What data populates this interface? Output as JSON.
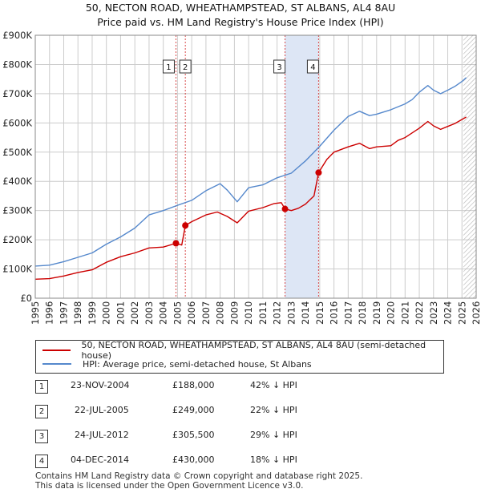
{
  "title_line1": "50, NECTON ROAD, WHEATHAMPSTEAD, ST ALBANS, AL4 8AU",
  "title_line2": "Price paid vs. HM Land Registry's House Price Index (HPI)",
  "colors": {
    "price": "#cc0000",
    "hpi": "#5588cc",
    "band": "#dde6f5",
    "grid": "#cccccc",
    "forecast_hatch": "#aaaaaa"
  },
  "chart_data": {
    "type": "line",
    "title": "Price paid vs. HM Land Registry's House Price Index (HPI)",
    "xlabel": "",
    "ylabel": "",
    "xlim": [
      1995,
      2026
    ],
    "ylim": [
      0,
      900000
    ],
    "x_ticks": [
      1995,
      1996,
      1997,
      1998,
      1999,
      2000,
      2001,
      2002,
      2003,
      2004,
      2005,
      2006,
      2007,
      2008,
      2009,
      2010,
      2011,
      2012,
      2013,
      2014,
      2015,
      2016,
      2017,
      2018,
      2019,
      2020,
      2021,
      2022,
      2023,
      2024,
      2025,
      2026
    ],
    "y_ticks": [
      0,
      100000,
      200000,
      300000,
      400000,
      500000,
      600000,
      700000,
      800000,
      900000
    ],
    "y_tick_labels": [
      "£0",
      "£100K",
      "£200K",
      "£300K",
      "£400K",
      "£500K",
      "£600K",
      "£700K",
      "£800K",
      "£900K"
    ],
    "shaded_range": [
      2012.56,
      2014.92
    ],
    "forecast_start": 2025.1,
    "series": [
      {
        "name": "50, NECTON ROAD, WHEATHAMPSTEAD, ST ALBANS, AL4 8AU (semi-detached house)",
        "color": "#cc0000",
        "x": [
          1995,
          1996,
          1997,
          1998,
          1999,
          2000,
          2001,
          2002,
          2003,
          2004,
          2004.89,
          2005.3,
          2005.55,
          2006,
          2007,
          2007.8,
          2008.5,
          2009.2,
          2010,
          2011,
          2011.8,
          2012.3,
          2012.56,
          2013,
          2013.5,
          2014,
          2014.6,
          2014.92,
          2015.5,
          2016,
          2017,
          2017.8,
          2018.5,
          2019,
          2020,
          2020.5,
          2021,
          2022,
          2022.6,
          2023,
          2023.5,
          2024,
          2024.5,
          2025,
          2025.3
        ],
        "y": [
          65000,
          67000,
          76000,
          88000,
          97000,
          123000,
          142000,
          155000,
          172000,
          175000,
          188000,
          182000,
          249000,
          262000,
          285000,
          295000,
          280000,
          258000,
          298000,
          310000,
          324000,
          327000,
          305500,
          300000,
          308000,
          322000,
          350000,
          430000,
          475000,
          500000,
          518000,
          530000,
          512000,
          518000,
          522000,
          540000,
          550000,
          582000,
          605000,
          590000,
          578000,
          588000,
          598000,
          612000,
          620000
        ]
      },
      {
        "name": "HPI: Average price, semi-detached house, St Albans",
        "color": "#5588cc",
        "x": [
          1995,
          1996,
          1997,
          1998,
          1999,
          2000,
          2001,
          2002,
          2003,
          2004,
          2005,
          2006,
          2007,
          2008,
          2008.5,
          2009.2,
          2010,
          2011,
          2012,
          2013,
          2014,
          2015,
          2016,
          2017,
          2017.8,
          2018.5,
          2019,
          2020,
          2021,
          2021.5,
          2022,
          2022.6,
          2023,
          2023.5,
          2024,
          2024.5,
          2025,
          2025.3
        ],
        "y": [
          110000,
          113000,
          125000,
          140000,
          155000,
          185000,
          210000,
          240000,
          285000,
          300000,
          318000,
          335000,
          368000,
          392000,
          370000,
          330000,
          378000,
          388000,
          412000,
          428000,
          470000,
          520000,
          575000,
          622000,
          640000,
          625000,
          630000,
          645000,
          665000,
          680000,
          705000,
          728000,
          712000,
          700000,
          712000,
          725000,
          742000,
          755000
        ]
      }
    ],
    "sales": [
      {
        "label": "1",
        "x": 2004.89,
        "y": 188000
      },
      {
        "label": "2",
        "x": 2005.55,
        "y": 249000
      },
      {
        "label": "3",
        "x": 2012.56,
        "y": 305500
      },
      {
        "label": "4",
        "x": 2014.92,
        "y": 430000
      }
    ]
  },
  "legend": {
    "price_label": "50, NECTON ROAD, WHEATHAMPSTEAD, ST ALBANS, AL4 8AU (semi-detached house)",
    "hpi_label": "HPI: Average price, semi-detached house, St Albans"
  },
  "sales_table": [
    {
      "num": "1",
      "date": "23-NOV-2004",
      "price": "£188,000",
      "hpi": "42% ↓ HPI"
    },
    {
      "num": "2",
      "date": "22-JUL-2005",
      "price": "£249,000",
      "hpi": "22% ↓ HPI"
    },
    {
      "num": "3",
      "date": "24-JUL-2012",
      "price": "£305,500",
      "hpi": "29% ↓ HPI"
    },
    {
      "num": "4",
      "date": "04-DEC-2014",
      "price": "£430,000",
      "hpi": "18% ↓ HPI"
    }
  ],
  "footer": {
    "line1": "Contains HM Land Registry data © Crown copyright and database right 2025.",
    "line2": "This data is licensed under the Open Government Licence v3.0."
  }
}
